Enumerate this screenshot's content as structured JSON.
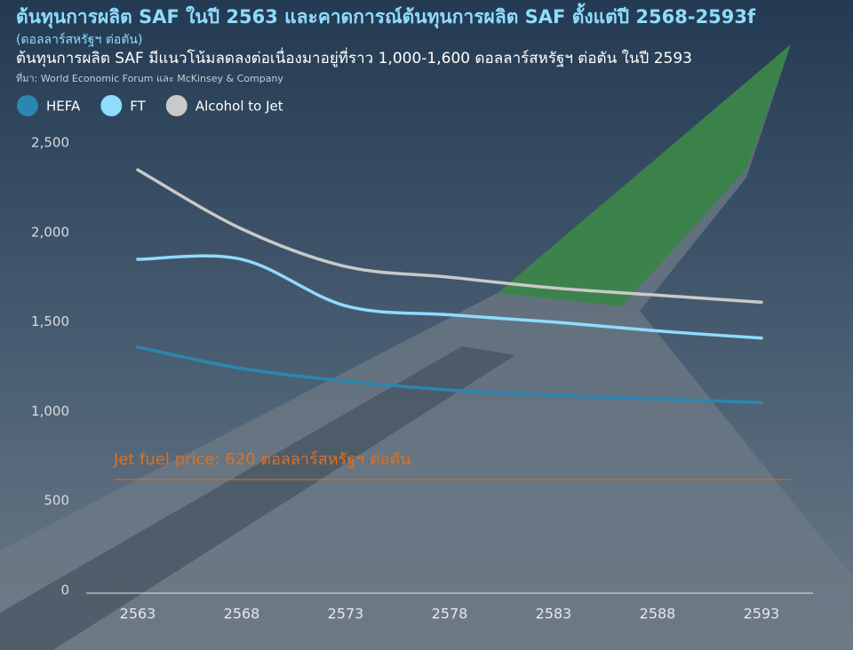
{
  "chart_data": {
    "type": "line",
    "title": "ต้นทุนการผลิต SAF ในปี 2563 และคาดการณ์ต้นทุนการผลิต SAF ตั้งแต่ปี 2568-2593f",
    "unit_label": "(ดอลลาร์สหรัฐฯ ต่อตัน)",
    "subtitle": "ต้นทุนการผลิต SAF มีแนวโน้มลดลงต่อเนื่องมาอยู่ที่ราว 1,000-1,600 ดอลลาร์สหรัฐฯ ต่อตัน ในปี 2593",
    "source": "ที่มา: World Economic Forum และ McKinsey & Company",
    "categories": [
      "2563",
      "2568",
      "2573",
      "2578",
      "2583",
      "2588",
      "2593"
    ],
    "series": [
      {
        "name": "HEFA",
        "color": "#2b86b0",
        "values": [
          1360,
          1240,
          1170,
          1120,
          1090,
          1070,
          1050
        ]
      },
      {
        "name": "FT",
        "color": "#8fdcff",
        "values": [
          1850,
          1850,
          1590,
          1540,
          1500,
          1450,
          1410
        ]
      },
      {
        "name": "Alcohol to Jet",
        "color": "#c9c9c9",
        "values": [
          2350,
          2020,
          1810,
          1750,
          1690,
          1650,
          1610
        ]
      }
    ],
    "reference_line": {
      "value": 620,
      "label": "Jet fuel price: 620 ดอลลาร์สหรัฐฯ ต่อตัน",
      "color": "#e0701f"
    },
    "ylim": [
      0,
      2500
    ],
    "yticks": [
      0,
      500,
      {
        "value": 1000,
        "label": "1,000"
      },
      {
        "value": 1500,
        "label": "1,500"
      },
      {
        "value": 2000,
        "label": "2,000"
      },
      {
        "value": 2500,
        "label": "2,500"
      }
    ],
    "grid": false,
    "legend": "top-left"
  }
}
